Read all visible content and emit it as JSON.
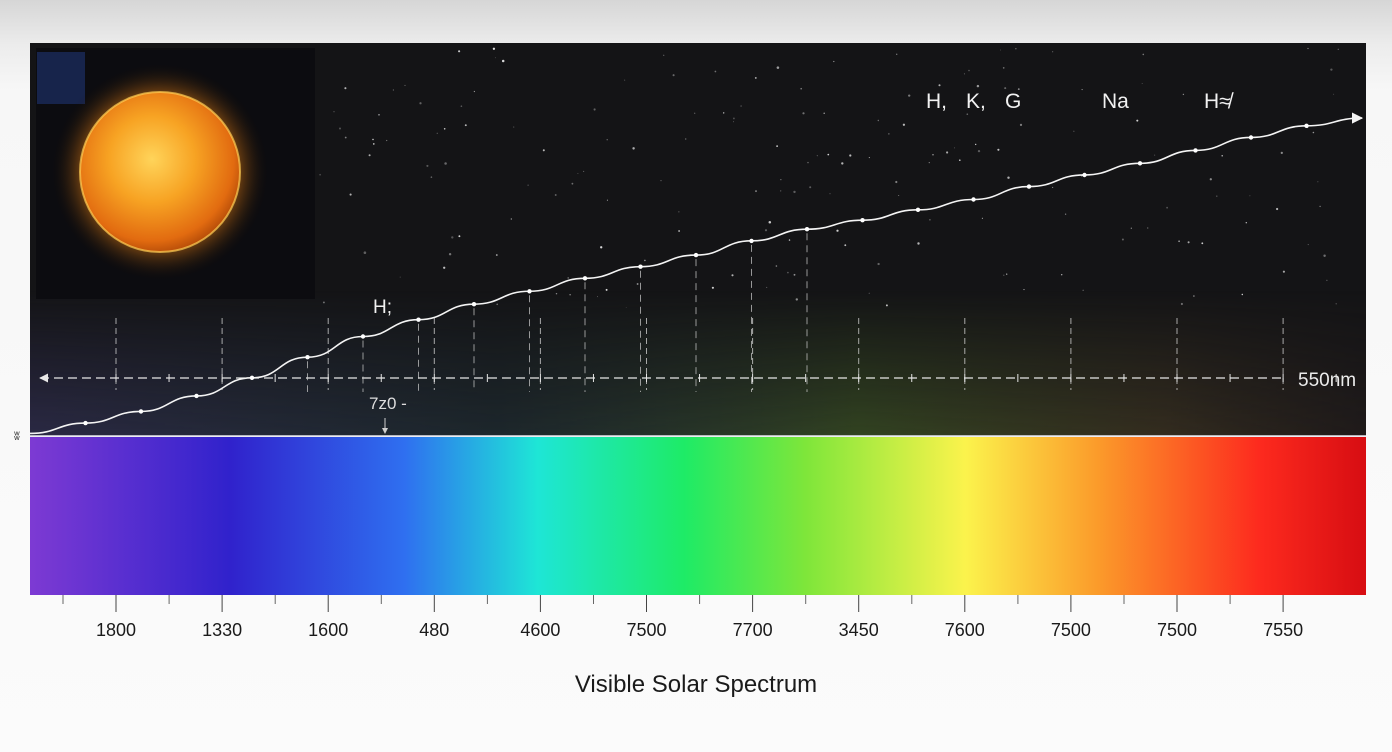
{
  "chart_data": {
    "type": "line",
    "title": "Visible Solar Spectrum",
    "x_tick_labels": [
      "1800",
      "1330",
      "1600",
      "480",
      "4600",
      "7500",
      "7700",
      "3450",
      "7600",
      "7500",
      "7500",
      "7550"
    ],
    "series": [
      {
        "values": [
          0.02,
          0.1,
          0.19,
          0.31,
          0.45,
          0.61,
          0.77,
          0.9,
          1.02,
          1.12,
          1.22,
          1.31,
          1.4,
          1.51,
          1.6,
          1.67,
          1.75,
          1.83,
          1.93,
          2.02,
          2.11,
          2.21,
          2.31,
          2.4,
          2.46
        ]
      }
    ],
    "line_labels": [
      {
        "text": "H,",
        "near_tick": 8
      },
      {
        "text": "K,",
        "near_tick": 8
      },
      {
        "text": "G",
        "near_tick": 9
      },
      {
        "text": "Na",
        "near_tick": 10
      },
      {
        "text": "H≉",
        "near_tick": 11
      },
      {
        "text": "H;",
        "near_tick": 2
      }
    ],
    "annotations": {
      "range_label": "550nm",
      "marker_label": "7z0 -",
      "left_mark": "ʬ"
    },
    "spectrum_colors": [
      "#7d3ad3",
      "#3022cc",
      "#2f6ff0",
      "#1ee6d6",
      "#1eeb66",
      "#7ee63a",
      "#fbf34c",
      "#fb9a2a",
      "#fd2a1e",
      "#d70d12"
    ],
    "colors": {
      "background": "#141416",
      "line": "#f4f4f4",
      "sun": "#f39d1f"
    },
    "grid": true
  }
}
